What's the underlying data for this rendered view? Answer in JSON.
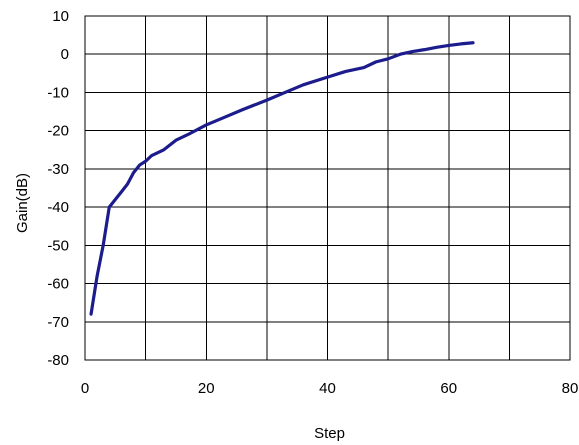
{
  "chart_data": {
    "type": "line",
    "title": "",
    "xlabel": "Step",
    "ylabel": "Gain(dB)",
    "xlim": [
      0,
      80
    ],
    "ylim": [
      -80,
      10
    ],
    "x_ticks": [
      0,
      20,
      40,
      60,
      80
    ],
    "y_ticks": [
      10,
      0,
      -10,
      -20,
      -30,
      -40,
      -50,
      -60,
      -70,
      -80
    ],
    "x_tick_labels": [
      "0",
      "20",
      "40",
      "60",
      "80"
    ],
    "y_tick_labels": [
      "10",
      "0",
      "-10",
      "-20",
      "-30",
      "-40",
      "-50",
      "-60",
      "-70",
      "-80"
    ],
    "grid": true,
    "legend": "none",
    "series": [
      {
        "color": "#1c1c8c",
        "points": [
          [
            1,
            -68
          ],
          [
            2,
            -58
          ],
          [
            3,
            -50
          ],
          [
            4,
            -40
          ],
          [
            5,
            -38
          ],
          [
            6,
            -36
          ],
          [
            7,
            -34
          ],
          [
            8,
            -31
          ],
          [
            9,
            -29
          ],
          [
            10,
            -28
          ],
          [
            11,
            -26.5
          ],
          [
            13,
            -25
          ],
          [
            15,
            -22.5
          ],
          [
            17,
            -21
          ],
          [
            20,
            -18.5
          ],
          [
            23,
            -16.5
          ],
          [
            26,
            -14.5
          ],
          [
            30,
            -12
          ],
          [
            33,
            -10
          ],
          [
            36,
            -8
          ],
          [
            40,
            -6
          ],
          [
            43,
            -4.5
          ],
          [
            46,
            -3.5
          ],
          [
            48,
            -2
          ],
          [
            50,
            -1.2
          ],
          [
            52,
            0
          ],
          [
            54,
            0.7
          ],
          [
            56,
            1.2
          ],
          [
            58,
            1.8
          ],
          [
            60,
            2.3
          ],
          [
            62,
            2.7
          ],
          [
            64,
            3
          ]
        ]
      }
    ]
  }
}
